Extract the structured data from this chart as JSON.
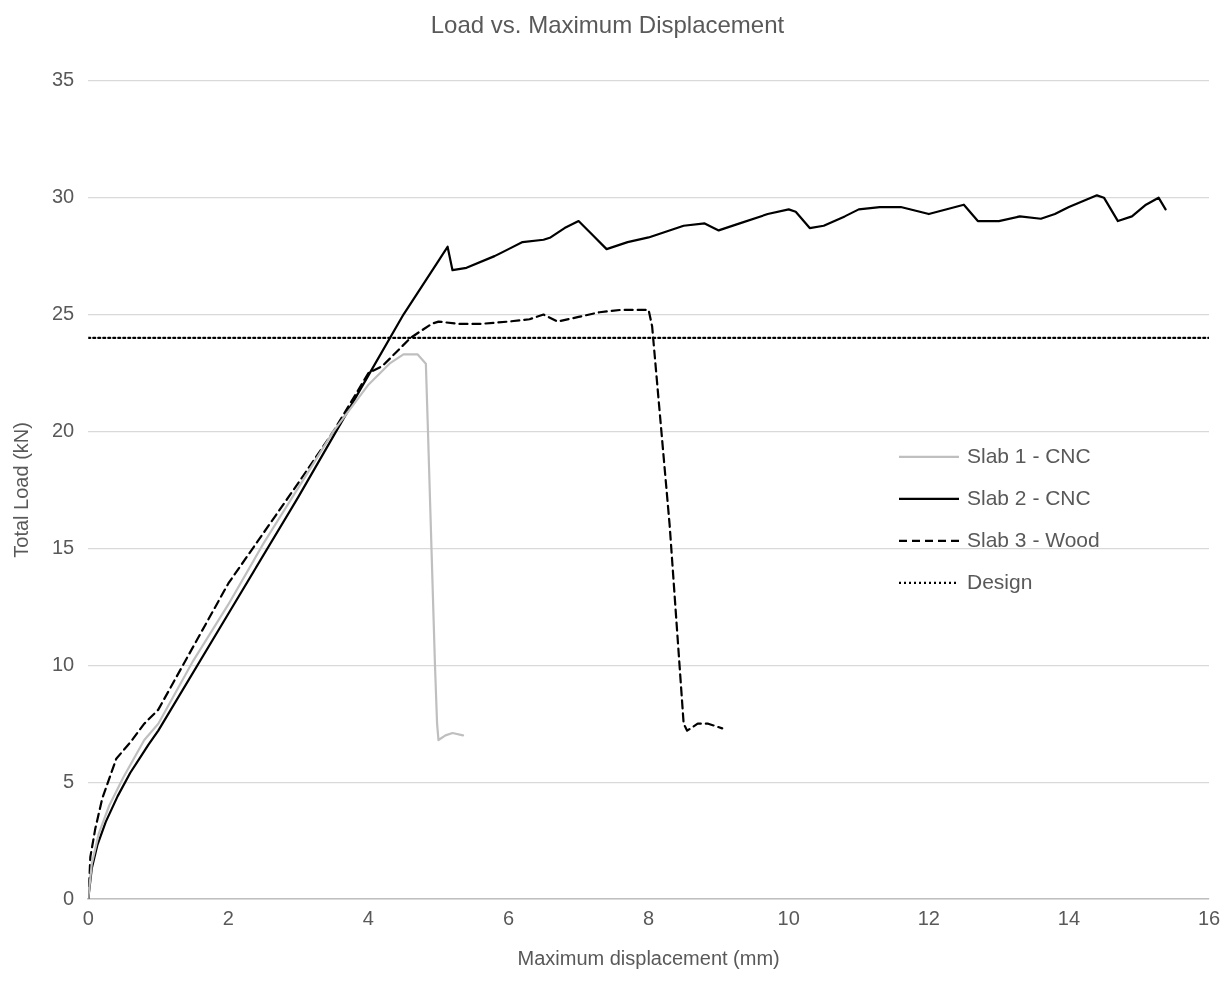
{
  "chart_data": {
    "type": "line",
    "title": "Load vs. Maximum Displacement",
    "xlabel": "Maximum displacement (mm)",
    "ylabel": "Total Load (kN)",
    "xlim": [
      0,
      16
    ],
    "xticks": [
      0,
      2,
      4,
      6,
      8,
      10,
      12,
      14,
      16
    ],
    "ylim": [
      0,
      35
    ],
    "yticks": [
      0,
      5,
      10,
      15,
      20,
      25,
      30,
      35
    ],
    "grid": "y",
    "legend": "right",
    "marker": "none",
    "series": [
      {
        "name": "Slab 1 - CNC",
        "color": "#bfbfbf",
        "line_style": "solid",
        "x": [
          0,
          0.05,
          0.15,
          0.3,
          0.5,
          0.8,
          1,
          1.5,
          2,
          2.5,
          3,
          3.5,
          4,
          4.3,
          4.5,
          4.7,
          4.82,
          4.85,
          4.9,
          4.95,
          4.98,
          5.0,
          5.1,
          5.2,
          5.35
        ],
        "values": [
          0,
          1.5,
          2.8,
          4.0,
          5.2,
          6.8,
          7.5,
          10.2,
          12.6,
          15.2,
          17.6,
          20.0,
          22.0,
          22.9,
          23.3,
          23.3,
          22.9,
          20,
          15,
          10,
          7.5,
          6.8,
          7.0,
          7.1,
          7.0
        ]
      },
      {
        "name": "Slab 2 - CNC",
        "color": "#000000",
        "line_style": "solid",
        "x": [
          0,
          0.05,
          0.13,
          0.25,
          0.42,
          0.6,
          0.86,
          1,
          2,
          3,
          4,
          4.5,
          5.0,
          5.13,
          5.2,
          5.4,
          5.8,
          6.2,
          6.5,
          6.6,
          6.8,
          7.0,
          7.2,
          7.4,
          7.7,
          8.0,
          8.5,
          8.8,
          9.0,
          9.3,
          9.7,
          10.0,
          10.1,
          10.3,
          10.5,
          10.8,
          11.0,
          11.3,
          11.6,
          12.0,
          12.5,
          12.7,
          13.0,
          13.3,
          13.6,
          13.8,
          14.0,
          14.4,
          14.5,
          14.7,
          14.9,
          15.1,
          15.28,
          15.38
        ],
        "values": [
          0,
          1.3,
          2.3,
          3.3,
          4.4,
          5.4,
          6.6,
          7.2,
          12.2,
          17.2,
          22.4,
          25.0,
          27.3,
          27.9,
          26.9,
          27.0,
          27.5,
          28.1,
          28.2,
          28.3,
          28.7,
          29.0,
          28.4,
          27.8,
          28.1,
          28.3,
          28.8,
          28.9,
          28.6,
          28.9,
          29.3,
          29.5,
          29.4,
          28.7,
          28.8,
          29.2,
          29.5,
          29.6,
          29.6,
          29.3,
          29.7,
          29.0,
          29.0,
          29.2,
          29.1,
          29.3,
          29.6,
          30.1,
          30.0,
          29.0,
          29.2,
          29.7,
          30.0,
          29.5
        ]
      },
      {
        "name": "Slab 3 - Wood",
        "color": "#000000",
        "line_style": "dashed",
        "x": [
          0,
          0.03,
          0.1,
          0.2,
          0.4,
          0.6,
          0.8,
          1,
          2,
          3,
          3.5,
          4,
          4.2,
          4.4,
          4.6,
          4.9,
          5.0,
          5.3,
          5.6,
          6,
          6.3,
          6.5,
          6.7,
          7,
          7.3,
          7.6,
          7.8,
          8.0,
          8.05,
          8.3,
          8.5,
          8.55,
          8.7,
          8.85,
          9.05
        ],
        "values": [
          0,
          1.8,
          3.0,
          4.3,
          6.0,
          6.7,
          7.5,
          8.1,
          13.5,
          17.8,
          20.0,
          22.5,
          22.8,
          23.4,
          24.0,
          24.6,
          24.7,
          24.6,
          24.6,
          24.7,
          24.8,
          25.0,
          24.7,
          24.9,
          25.1,
          25.2,
          25.2,
          25.2,
          24.5,
          16,
          7.5,
          7.2,
          7.5,
          7.5,
          7.3
        ]
      },
      {
        "name": "Design",
        "color": "#000000",
        "line_style": "dotted",
        "x": [
          0,
          16
        ],
        "values": [
          24,
          24
        ]
      }
    ]
  }
}
